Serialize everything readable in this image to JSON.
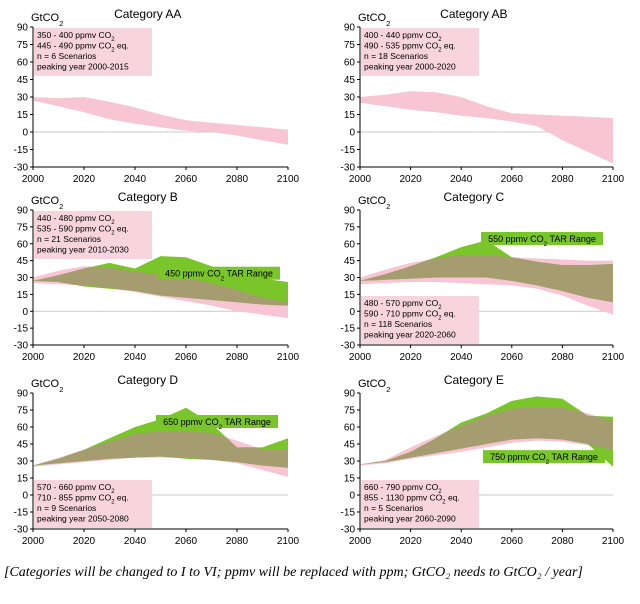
{
  "caption": "[Categories will be changed to I to VI; ppmv will be replaced with ppm; GtCO₂ needs to GtCO₂ / year]",
  "colors": {
    "band": "#f7c5d3",
    "tar": "#79c52a",
    "overlap": "#a59d70",
    "note": "#f7d4de",
    "axis": "#000000",
    "grid": "#c8c8c8"
  },
  "chart_data": [
    {
      "type": "area",
      "title": "Category AA",
      "ylabel": "GtCO2",
      "xlim": [
        2000,
        2100
      ],
      "ylim": [
        -30,
        90
      ],
      "xticks": [
        2000,
        2020,
        2040,
        2060,
        2080,
        2100
      ],
      "yticks": [
        -30,
        -15,
        0,
        15,
        30,
        45,
        60,
        75,
        90
      ],
      "annotation": [
        "350 - 400 ppmv CO2",
        "445 - 490 ppmv CO2 eq.",
        "n = 6 Scenarios",
        "peaking year 2000-2015"
      ],
      "annotation_position": "top-left",
      "series": [
        {
          "name": "",
          "kind": "band",
          "x": [
            2000,
            2010,
            2020,
            2030,
            2040,
            2050,
            2060,
            2070,
            2080,
            2090,
            2100
          ],
          "upper": [
            30,
            29,
            30,
            26,
            21,
            15,
            10,
            8,
            6,
            4,
            2
          ],
          "lower": [
            27,
            22,
            17,
            11,
            7,
            4,
            1,
            0,
            -3,
            -7,
            -11
          ]
        }
      ]
    },
    {
      "type": "area",
      "title": "Category AB",
      "ylabel": "GtCO2",
      "xlim": [
        2000,
        2100
      ],
      "ylim": [
        -30,
        90
      ],
      "xticks": [
        2000,
        2020,
        2040,
        2060,
        2080,
        2100
      ],
      "yticks": [
        -30,
        -15,
        0,
        15,
        30,
        45,
        60,
        75,
        90
      ],
      "annotation": [
        "400 - 440 ppmv CO2",
        "490 - 535 ppmv CO2 eq.",
        "n = 18 Scenarios",
        "peaking year 2000-2020"
      ],
      "annotation_position": "top-left",
      "series": [
        {
          "name": "",
          "kind": "band",
          "x": [
            2000,
            2010,
            2020,
            2030,
            2040,
            2050,
            2060,
            2070,
            2080,
            2090,
            2100
          ],
          "upper": [
            30,
            32,
            35,
            34,
            30,
            22,
            16,
            15,
            14,
            13,
            12
          ],
          "lower": [
            25,
            22,
            19,
            17,
            14,
            12,
            9,
            5,
            -7,
            -17,
            -27
          ]
        }
      ]
    },
    {
      "type": "area",
      "title": "Category B",
      "ylabel": "GtCO2",
      "xlim": [
        2000,
        2100
      ],
      "ylim": [
        -30,
        90
      ],
      "xticks": [
        2000,
        2020,
        2040,
        2060,
        2080,
        2100
      ],
      "yticks": [
        -30,
        -15,
        0,
        15,
        30,
        45,
        60,
        75,
        90
      ],
      "annotation": [
        "440 - 480 ppmv CO2",
        "535 - 590 ppmv CO2 eq.",
        "n = 21 Scenarios",
        "peaking year 2010-2030"
      ],
      "annotation_position": "top-left",
      "tar_label": "450 ppmv CO2 TAR Range",
      "tar_label_position": "center-right",
      "series": [
        {
          "name": "",
          "kind": "band",
          "x": [
            2000,
            2010,
            2020,
            2030,
            2040,
            2050,
            2060,
            2070,
            2080,
            2090,
            2100
          ],
          "upper": [
            30,
            36,
            40,
            39,
            35,
            33,
            30,
            25,
            19,
            12,
            8
          ],
          "lower": [
            25,
            24,
            23,
            21,
            17,
            13,
            9,
            5,
            0,
            -3,
            -6
          ]
        },
        {
          "name": "450 ppmv CO2 TAR Range",
          "kind": "tar",
          "x": [
            2000,
            2010,
            2020,
            2030,
            2040,
            2050,
            2060,
            2070,
            2080,
            2090,
            2100
          ],
          "upper": [
            27,
            32,
            38,
            43,
            38,
            49,
            48,
            40,
            33,
            29,
            26
          ],
          "lower": [
            27,
            26,
            22,
            20,
            18,
            14,
            12,
            10,
            8,
            6,
            5
          ]
        }
      ]
    },
    {
      "type": "area",
      "title": "Category C",
      "ylabel": "GtCO2",
      "xlim": [
        2000,
        2100
      ],
      "ylim": [
        -30,
        90
      ],
      "xticks": [
        2000,
        2020,
        2040,
        2060,
        2080,
        2100
      ],
      "yticks": [
        -30,
        -15,
        0,
        15,
        30,
        45,
        60,
        75,
        90
      ],
      "annotation": [
        "480 - 570 ppmv CO2",
        "590 - 710 ppmv CO2 eq.",
        "n = 118 Scenarios",
        "peaking year 2020-2060"
      ],
      "annotation_position": "bottom-left",
      "tar_label": "550 ppmv CO2 TAR Range",
      "tar_label_position": "top-right",
      "series": [
        {
          "name": "",
          "kind": "band",
          "x": [
            2000,
            2010,
            2020,
            2030,
            2040,
            2050,
            2060,
            2070,
            2080,
            2090,
            2100
          ],
          "upper": [
            30,
            37,
            43,
            47,
            50,
            50,
            48,
            47,
            46,
            45,
            45
          ],
          "lower": [
            24,
            25,
            26,
            26,
            25,
            24,
            23,
            20,
            14,
            5,
            -3
          ]
        },
        {
          "name": "550 ppmv CO2 TAR Range",
          "kind": "tar",
          "x": [
            2000,
            2010,
            2020,
            2030,
            2040,
            2050,
            2060,
            2070,
            2080,
            2090,
            2100
          ],
          "upper": [
            27,
            33,
            40,
            48,
            57,
            63,
            48,
            44,
            41,
            41,
            42
          ],
          "lower": [
            27,
            28,
            29,
            30,
            30,
            30,
            27,
            23,
            18,
            12,
            8
          ]
        }
      ]
    },
    {
      "type": "area",
      "title": "Category D",
      "ylabel": "GtCO2",
      "xlim": [
        2000,
        2100
      ],
      "ylim": [
        -30,
        90
      ],
      "xticks": [
        2000,
        2020,
        2040,
        2060,
        2080,
        2100
      ],
      "yticks": [
        -30,
        -15,
        0,
        15,
        30,
        45,
        60,
        75,
        90
      ],
      "annotation": [
        "570 - 660 ppmv CO2",
        "710 - 855 ppmv CO2 eq.",
        "n = 9 Scenarios",
        "peaking year 2050-2080"
      ],
      "annotation_position": "bottom-left",
      "tar_label": "650 ppmv CO2 TAR Range",
      "tar_label_position": "top-right",
      "series": [
        {
          "name": "",
          "kind": "band",
          "x": [
            2000,
            2010,
            2020,
            2030,
            2040,
            2050,
            2060,
            2070,
            2080,
            2090,
            2100
          ],
          "upper": [
            26,
            33,
            40,
            47,
            54,
            56,
            56,
            55,
            48,
            40,
            40
          ],
          "lower": [
            25,
            27,
            29,
            31,
            33,
            33,
            33,
            31,
            28,
            22,
            16
          ]
        },
        {
          "name": "650 ppmv CO2 TAR Range",
          "kind": "tar",
          "x": [
            2000,
            2010,
            2020,
            2030,
            2040,
            2050,
            2060,
            2070,
            2080,
            2090,
            2100
          ],
          "upper": [
            26,
            32,
            40,
            50,
            60,
            67,
            77,
            63,
            42,
            42,
            50
          ],
          "lower": [
            26,
            28,
            30,
            32,
            33,
            34,
            32,
            31,
            29,
            26,
            24
          ]
        }
      ]
    },
    {
      "type": "area",
      "title": "Category E",
      "ylabel": "GtCO2",
      "xlim": [
        2000,
        2100
      ],
      "ylim": [
        -30,
        90
      ],
      "xticks": [
        2000,
        2020,
        2040,
        2060,
        2080,
        2100
      ],
      "yticks": [
        -30,
        -15,
        0,
        15,
        30,
        45,
        60,
        75,
        90
      ],
      "annotation": [
        "660 - 790 ppmv CO2",
        "855 - 1130 ppmv CO2 eq.",
        "n = 5 Scenarios",
        "peaking year 2060-2090"
      ],
      "annotation_position": "bottom-left",
      "tar_label": "750 ppmv CO2 TAR Range",
      "tar_label_position": "center-right",
      "series": [
        {
          "name": "",
          "kind": "band",
          "x": [
            2000,
            2010,
            2020,
            2030,
            2040,
            2050,
            2060,
            2070,
            2080,
            2090,
            2100
          ],
          "upper": [
            27,
            31,
            42,
            52,
            61,
            70,
            76,
            78,
            77,
            72,
            65
          ],
          "lower": [
            26,
            28,
            32,
            35,
            38,
            42,
            46,
            48,
            47,
            44,
            40
          ]
        },
        {
          "name": "750 ppmv CO2 TAR Range",
          "kind": "tar",
          "x": [
            2000,
            2010,
            2020,
            2030,
            2040,
            2050,
            2060,
            2070,
            2080,
            2090,
            2100
          ],
          "upper": [
            27,
            30,
            38,
            50,
            64,
            72,
            83,
            87,
            85,
            70,
            69
          ],
          "lower": [
            27,
            29,
            33,
            37,
            41,
            45,
            49,
            50,
            49,
            45,
            25
          ]
        }
      ]
    }
  ]
}
